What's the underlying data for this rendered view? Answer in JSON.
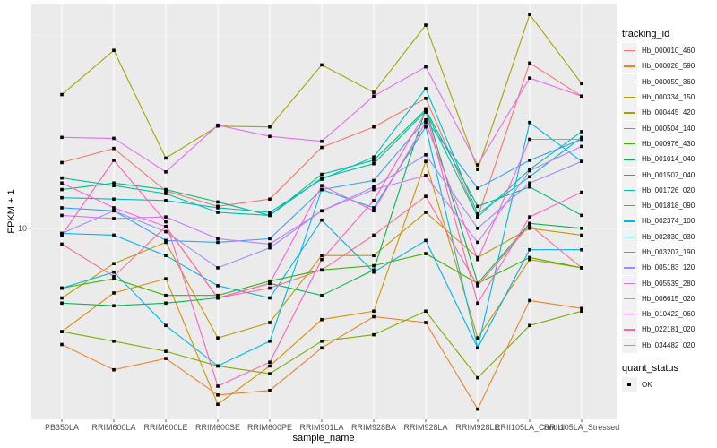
{
  "chart_data": {
    "type": "line",
    "title": "",
    "xlabel": "sample_name",
    "ylabel": "FPKM + 1",
    "y_scale": "log10",
    "y_ticks": [
      10
    ],
    "y_tick_labels": [
      "10"
    ],
    "ylim": [
      3.2,
      38
    ],
    "grid": true,
    "legend_position": "right",
    "categories": [
      "PB350LA",
      "RRIM600LA",
      "RRIM600LE",
      "RRIM600SE",
      "RRIM600PE",
      "RRIM901LA",
      "RRIM928BA",
      "RRIM928LA",
      "RRIM928LE",
      "RRII105LA_Control",
      "RRII105LA_Stressed"
    ],
    "legend": {
      "color_title": "tracking_id",
      "shape_title": "quant_status",
      "shape_entries": [
        "OK"
      ]
    },
    "series": [
      {
        "name": "Hb_000010_460",
        "color": "#F8766D",
        "values": [
          14.8,
          16.1,
          12.5,
          11.4,
          11.9,
          16.2,
          18.3,
          21.7,
          10.7,
          26.8,
          22.0
        ]
      },
      {
        "name": "Hb_000028_590",
        "color": "#EA8331",
        "values": [
          5.0,
          4.3,
          4.6,
          3.7,
          3.8,
          4.9,
          5.9,
          5.7,
          3.4,
          6.5,
          6.2
        ]
      },
      {
        "name": "Hb_000059_360",
        "color": "#D89000",
        "values": [
          5.4,
          6.8,
          7.4,
          3.5,
          4.4,
          5.8,
          6.1,
          14.9,
          5.2,
          8.3,
          7.9
        ]
      },
      {
        "name": "Hb_000334_150",
        "color": "#C09B00",
        "values": [
          6.6,
          8.1,
          9.2,
          5.2,
          5.7,
          8.5,
          8.5,
          11.0,
          8.4,
          10.0,
          9.6
        ]
      },
      {
        "name": "Hb_000445_420",
        "color": "#A3A500",
        "values": [
          22.2,
          28.9,
          15.2,
          18.4,
          18.3,
          26.5,
          22.5,
          33.6,
          14.2,
          35.8,
          23.7
        ]
      },
      {
        "name": "Hb_000504_140",
        "color": "#7CAE00",
        "values": [
          5.4,
          5.1,
          4.8,
          4.4,
          4.2,
          5.1,
          5.3,
          6.1,
          4.1,
          5.6,
          6.1
        ]
      },
      {
        "name": "Hb_000976_430",
        "color": "#39B600",
        "values": [
          7.0,
          7.4,
          6.7,
          6.7,
          7.3,
          7.8,
          8.0,
          8.6,
          7.2,
          8.4,
          7.9
        ]
      },
      {
        "name": "Hb_001014_040",
        "color": "#00BB4E",
        "values": [
          6.4,
          6.3,
          6.4,
          6.6,
          7.2,
          6.7,
          7.8,
          20.4,
          7.2,
          10.3,
          10.0
        ]
      },
      {
        "name": "Hb_001507_040",
        "color": "#00BF7D",
        "values": [
          12.6,
          13.1,
          12.6,
          11.7,
          10.8,
          13.8,
          15.0,
          20.3,
          11.4,
          12.8,
          10.8
        ]
      },
      {
        "name": "Hb_001726_020",
        "color": "#00C1A3",
        "values": [
          13.5,
          12.9,
          12.3,
          11.0,
          10.8,
          13.5,
          14.7,
          20.1,
          10.7,
          14.2,
          17.8
        ]
      },
      {
        "name": "Hb_001818_090",
        "color": "#00BFC4",
        "values": [
          12.0,
          11.9,
          11.8,
          11.3,
          11.0,
          13.4,
          15.3,
          23.0,
          10.9,
          13.6,
          17.2
        ]
      },
      {
        "name": "Hb_002374_100",
        "color": "#00BAE0",
        "values": [
          7.0,
          7.7,
          5.6,
          4.4,
          5.1,
          12.6,
          11.3,
          18.3,
          4.9,
          18.8,
          14.9
        ]
      },
      {
        "name": "Hb_002830_030",
        "color": "#00B0F6",
        "values": [
          9.7,
          9.6,
          8.5,
          7.1,
          6.6,
          10.5,
          7.7,
          9.3,
          4.9,
          8.8,
          8.8
        ]
      },
      {
        "name": "Hb_003207_190",
        "color": "#35A2FF",
        "values": [
          11.3,
          11.1,
          9.3,
          9.2,
          9.4,
          12.6,
          13.3,
          19.1,
          12.7,
          15.0,
          17.0
        ]
      },
      {
        "name": "Hb_005183_120",
        "color": "#9590FF",
        "values": [
          9.7,
          11.1,
          9.8,
          7.9,
          8.9,
          11.1,
          12.8,
          15.5,
          10.0,
          13.1,
          14.9
        ]
      },
      {
        "name": "Hb_005539_280",
        "color": "#C77CFF",
        "values": [
          10.8,
          10.6,
          10.7,
          9.4,
          9.1,
          11.1,
          12.6,
          13.7,
          9.2,
          14.1,
          16.3
        ]
      },
      {
        "name": "Hb_006615_020",
        "color": "#E76BF3",
        "values": [
          17.2,
          17.1,
          14.0,
          18.5,
          17.3,
          16.8,
          22.0,
          26.2,
          14.6,
          24.5,
          22.0
        ]
      },
      {
        "name": "Hb_010422_060",
        "color": "#FA62DB",
        "values": [
          13.1,
          11.3,
          10.1,
          6.6,
          7.2,
          12.9,
          11.1,
          18.8,
          8.3,
          17.0,
          17.0
        ]
      },
      {
        "name": "Hb_022181_020",
        "color": "#FF62BC",
        "values": [
          9.6,
          15.0,
          10.4,
          3.9,
          4.5,
          8.3,
          11.8,
          20.0,
          6.4,
          10.7,
          12.4
        ]
      },
      {
        "name": "Hb_034482_020",
        "color": "#FF6C91",
        "values": [
          9.1,
          7.5,
          10.1,
          6.6,
          7.0,
          7.8,
          9.6,
          12.1,
          7.1,
          10.2,
          7.9
        ]
      }
    ]
  }
}
